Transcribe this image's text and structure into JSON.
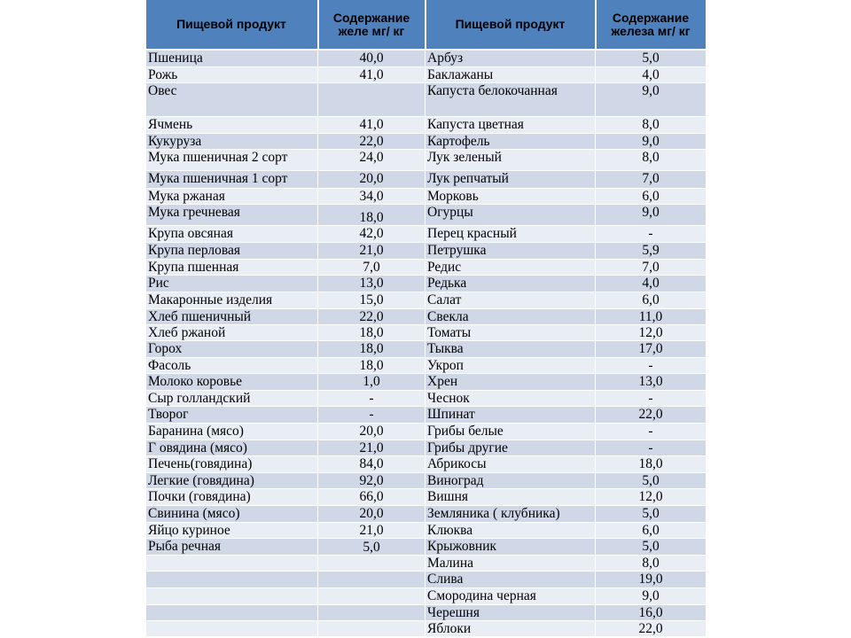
{
  "headers": [
    "Пищевой продукт",
    "Содержание желе мг/ кг",
    "Пищевой продукт",
    "Содержание железа мг/ кг"
  ],
  "rows": [
    [
      "Пшеница",
      "40,0",
      "Арбуз",
      "5,0"
    ],
    [
      "Рожь",
      "41,0",
      "Баклажаны",
      "4,0"
    ],
    [
      "Овес",
      "",
      "Капуста белокочанная",
      "9,0"
    ],
    [
      "Ячмень",
      "41,0",
      "Капуста цветная",
      "8,0"
    ],
    [
      "Кукуруза",
      "22,0",
      "Картофель",
      "9,0"
    ],
    [
      "Мука пшеничная 2 сорт",
      "24,0",
      "Лук зеленый",
      "8,0"
    ],
    [
      "Мука пшеничная 1 сорт",
      "20,0",
      "Лук репчатый",
      "7,0"
    ],
    [
      "Мука ржаная",
      "34,0",
      "Морковь",
      "6,0"
    ],
    [
      "Мука гречневая",
      "18,0",
      "Огурцы",
      "9,0"
    ],
    [
      "Крупа овсяная",
      "42,0",
      "Перец красный",
      "-"
    ],
    [
      "Крупа перловая",
      "21,0",
      "Петрушка",
      "5,9"
    ],
    [
      "Крупа пшенная",
      "7,0",
      "Редис",
      "7,0"
    ],
    [
      "Рис",
      "13,0",
      "Редька",
      "4,0"
    ],
    [
      "Макаронные изделия",
      "15,0",
      "Салат",
      "6,0"
    ],
    [
      "Хлеб пшеничный",
      "22,0",
      "Свекла",
      "11,0"
    ],
    [
      "Хлеб ржаной",
      "18,0",
      "Томаты",
      "12,0"
    ],
    [
      "Горох",
      "18,0",
      "Тыква",
      "17,0"
    ],
    [
      "Фасоль",
      "18,0",
      "Укроп",
      "-"
    ],
    [
      "Молоко коровье",
      "1,0",
      "Хрен",
      "13,0"
    ],
    [
      "Сыр голландский",
      "-",
      "Чеснок",
      "-"
    ],
    [
      "Творог",
      "-",
      "Шпинат",
      "22,0"
    ],
    [
      "Баранина (мясо)",
      "20,0",
      "Грибы белые",
      "-"
    ],
    [
      "Г овядина (мясо)",
      "21,0",
      "Грибы другие",
      "-"
    ],
    [
      "Печень(говядина)",
      "84,0",
      "Абрикосы",
      "18,0"
    ],
    [
      "Легкие (говядина)",
      "92,0",
      "Виноград",
      "5,0"
    ],
    [
      "Почки (говядина)",
      "66,0",
      "Вишня",
      "12,0"
    ],
    [
      "Свинина (мясо)",
      "20,0",
      "Земляника ( клубника)",
      "5,0"
    ],
    [
      "Яйцо куриное",
      "21,0",
      "Клюква",
      "6,0"
    ],
    [
      "Рыба речная",
      "5,0",
      "Крыжовник",
      "5,0"
    ],
    [
      "",
      "",
      "Малина",
      "8,0"
    ],
    [
      "",
      "",
      "Слива",
      "19,0"
    ],
    [
      "",
      "",
      "Смородина черная",
      "9,0"
    ],
    [
      "",
      "",
      "Черешня",
      "16,0"
    ],
    [
      "",
      "",
      "Яблоки",
      "22,0"
    ]
  ]
}
